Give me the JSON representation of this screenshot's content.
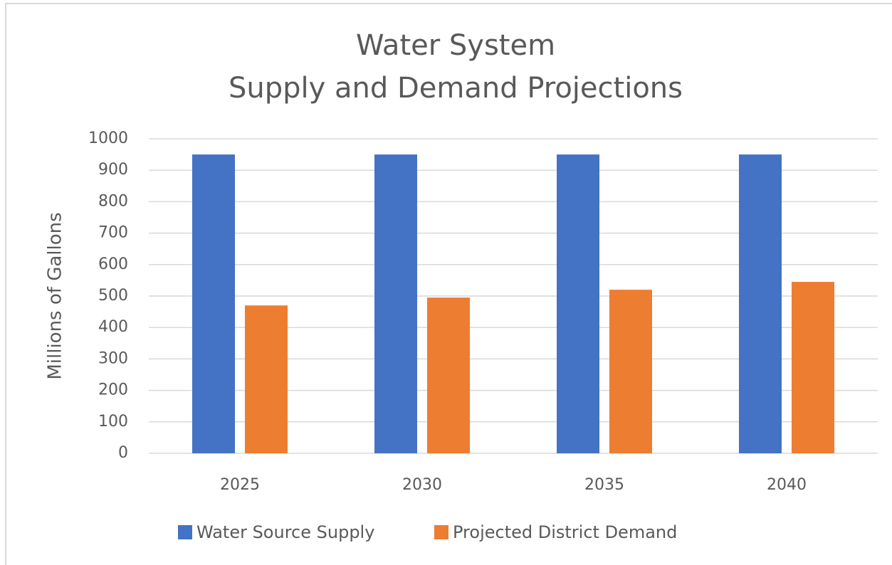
{
  "chart_data": {
    "type": "bar",
    "title": [
      "Water System",
      "Supply and Demand Projections"
    ],
    "y_label": "Millions of Gallons",
    "categories": [
      "2025",
      "2030",
      "2035",
      "2040"
    ],
    "series": [
      {
        "name": "Water Source Supply",
        "color": "#4472c4",
        "values": [
          950,
          950,
          950,
          950
        ]
      },
      {
        "name": "Projected District Demand",
        "color": "#ed7d31",
        "values": [
          470,
          495,
          520,
          545
        ]
      }
    ],
    "ylim": [
      0,
      1000
    ],
    "yticks": [
      0,
      100,
      200,
      300,
      400,
      500,
      600,
      700,
      800,
      900,
      1000
    ],
    "grid": true,
    "legend": "bottom"
  }
}
